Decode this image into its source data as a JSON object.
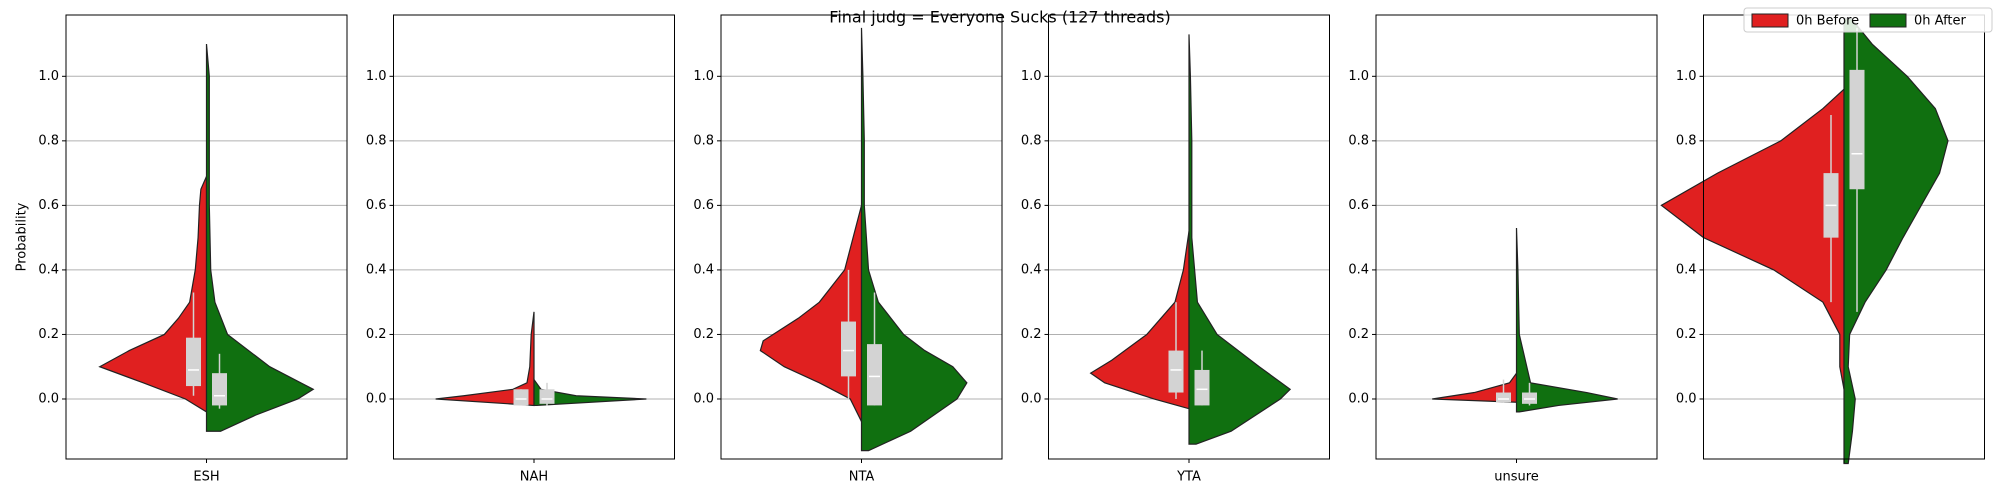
{
  "chart_data": {
    "type": "split-violin",
    "title": "Final judg = Everyone Sucks (127 threads)",
    "y_label": "Probability",
    "legend": "upper right",
    "grid": true,
    "ylim": [
      -0.186,
      1.19
    ],
    "yticks": [
      {
        "value": 0,
        "label": "0.0"
      },
      0.2,
      0.4,
      0.6,
      0.8,
      {
        "value": 1,
        "label": "1.0"
      }
    ],
    "series": [
      {
        "name": "0h Before",
        "color": "#e02020"
      },
      {
        "name": "0h After",
        "color": "#107010"
      }
    ],
    "panels": [
      {
        "category": "ESH",
        "violins": [
          {
            "y": [
              -0.04,
              0,
              0.05,
              0.1,
              0.15,
              0.2,
              0.25,
              0.3,
              0.4,
              0.5,
              0.6,
              0.65,
              0.69
            ],
            "density": [
              0,
              0.15,
              0.45,
              0.76,
              0.55,
              0.3,
              0.2,
              0.12,
              0.08,
              0.06,
              0.05,
              0.04,
              0
            ],
            "box": [
              0.04,
              0.09,
              0.19
            ],
            "whiskers": [
              0.01,
              0.33
            ]
          },
          {
            "y": [
              -0.1,
              -0.05,
              0,
              0.03,
              0.1,
              0.2,
              0.3,
              0.4,
              0.6,
              0.8,
              1.0,
              1.1
            ],
            "density": [
              0.1,
              0.35,
              0.65,
              0.76,
              0.45,
              0.15,
              0.06,
              0.03,
              0.02,
              0.02,
              0.02,
              0
            ],
            "box": [
              -0.02,
              0.01,
              0.08
            ],
            "whiskers": [
              -0.03,
              0.14
            ]
          }
        ]
      },
      {
        "category": "NAH",
        "violins": [
          {
            "y": [
              -0.02,
              0,
              0.01,
              0.03,
              0.05,
              0.1,
              0.2,
              0.27
            ],
            "density": [
              0,
              0.7,
              0.5,
              0.15,
              0.05,
              0.03,
              0.02,
              0
            ],
            "box": [
              -0.02,
              0,
              0.03
            ],
            "whiskers": [
              -0.02,
              0.03
            ]
          },
          {
            "y": [
              -0.02,
              0,
              0.01,
              0.03,
              0.06
            ],
            "density": [
              0.02,
              0.8,
              0.3,
              0.05,
              0
            ],
            "box": [
              -0.015,
              0,
              0.03
            ],
            "whiskers": [
              -0.02,
              0.05
            ]
          }
        ]
      },
      {
        "category": "NTA",
        "violins": [
          {
            "y": [
              -0.07,
              0,
              0.05,
              0.1,
              0.15,
              0.18,
              0.25,
              0.3,
              0.4,
              0.5,
              0.6
            ],
            "density": [
              0,
              0.08,
              0.3,
              0.55,
              0.72,
              0.7,
              0.45,
              0.3,
              0.12,
              0.06,
              0
            ],
            "box": [
              0.07,
              0.15,
              0.24
            ],
            "whiskers": [
              0,
              0.4
            ]
          },
          {
            "y": [
              -0.16,
              -0.1,
              0,
              0.05,
              0.1,
              0.15,
              0.2,
              0.3,
              0.4,
              0.6,
              0.8,
              1.0,
              1.15
            ],
            "density": [
              0.05,
              0.35,
              0.68,
              0.75,
              0.65,
              0.45,
              0.3,
              0.12,
              0.05,
              0.02,
              0.02,
              0.01,
              0
            ],
            "box": [
              -0.02,
              0.07,
              0.17
            ],
            "whiskers": [
              -0.02,
              0.33
            ]
          }
        ]
      },
      {
        "category": "YTA",
        "violins": [
          {
            "y": [
              -0.03,
              0,
              0.05,
              0.08,
              0.12,
              0.2,
              0.3,
              0.4,
              0.52
            ],
            "density": [
              0,
              0.25,
              0.6,
              0.7,
              0.55,
              0.3,
              0.1,
              0.04,
              0
            ],
            "box": [
              0.02,
              0.09,
              0.15
            ],
            "whiskers": [
              0,
              0.3
            ]
          },
          {
            "y": [
              -0.14,
              -0.1,
              0,
              0.03,
              0.1,
              0.2,
              0.3,
              0.5,
              0.8,
              1.0,
              1.13
            ],
            "density": [
              0.05,
              0.3,
              0.65,
              0.72,
              0.5,
              0.2,
              0.06,
              0.02,
              0.02,
              0.01,
              0
            ],
            "box": [
              -0.02,
              0.03,
              0.09
            ],
            "whiskers": [
              -0.02,
              0.15
            ]
          }
        ]
      },
      {
        "category": "unsure",
        "violins": [
          {
            "y": [
              -0.01,
              0,
              0.02,
              0.05,
              0.08
            ],
            "density": [
              0,
              0.6,
              0.3,
              0.05,
              0
            ],
            "box": [
              -0.01,
              0,
              0.02
            ],
            "whiskers": [
              -0.01,
              0.06
            ]
          },
          {
            "y": [
              -0.04,
              -0.02,
              0,
              0.02,
              0.05,
              0.2,
              0.4,
              0.53
            ],
            "density": [
              0.02,
              0.3,
              0.72,
              0.5,
              0.1,
              0.02,
              0.01,
              0
            ],
            "box": [
              -0.015,
              0,
              0.02
            ],
            "whiskers": [
              -0.02,
              0.05
            ]
          }
        ]
      },
      {
        "category": null,
        "violins": [
          {
            "y": [
              0.03,
              0.1,
              0.2,
              0.3,
              0.4,
              0.5,
              0.6,
              0.7,
              0.8,
              0.9,
              0.96
            ],
            "density": [
              0,
              0.03,
              0.03,
              0.15,
              0.5,
              1.0,
              1.3,
              0.9,
              0.45,
              0.15,
              0
            ],
            "box": [
              0.5,
              0.6,
              0.7
            ],
            "whiskers": [
              0.3,
              0.88
            ]
          },
          {
            "y": [
              -0.2,
              -0.1,
              0,
              0.1,
              0.2,
              0.3,
              0.4,
              0.5,
              0.6,
              0.7,
              0.8,
              0.9,
              1.0,
              1.1,
              1.18
            ],
            "density": [
              0.03,
              0.06,
              0.08,
              0.03,
              0.04,
              0.15,
              0.3,
              0.42,
              0.55,
              0.68,
              0.74,
              0.65,
              0.45,
              0.2,
              0.05
            ],
            "box": [
              0.65,
              0.76,
              1.02
            ],
            "whiskers": [
              0.27,
              1.15
            ]
          }
        ]
      }
    ]
  }
}
